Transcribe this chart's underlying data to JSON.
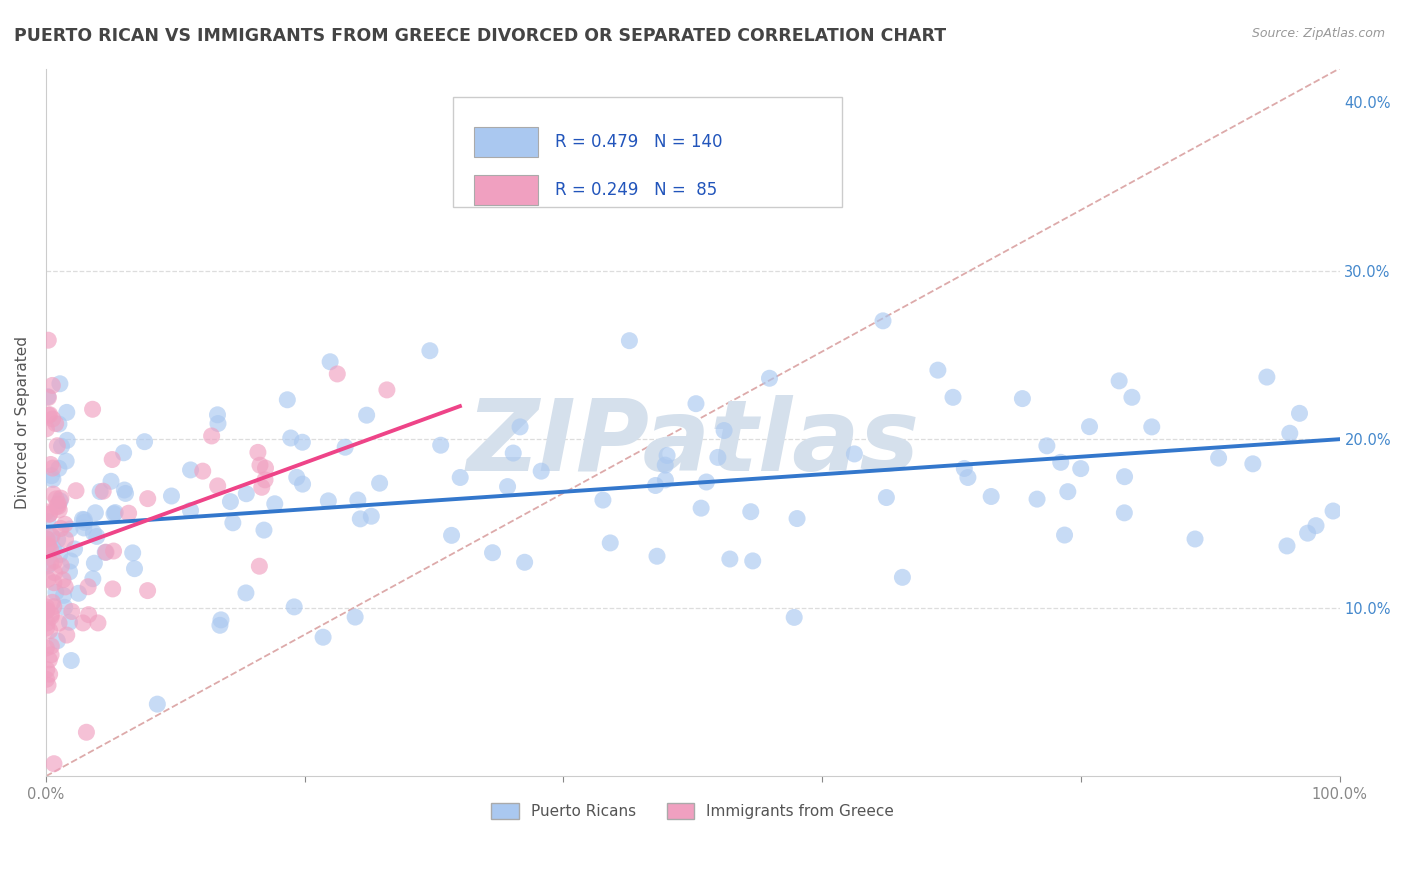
{
  "title": "PUERTO RICAN VS IMMIGRANTS FROM GREECE DIVORCED OR SEPARATED CORRELATION CHART",
  "source": "Source: ZipAtlas.com",
  "ylabel": "Divorced or Separated",
  "xlim": [
    0,
    1.0
  ],
  "ylim": [
    0,
    0.42
  ],
  "x_ticks": [
    0.0,
    0.2,
    0.4,
    0.6,
    0.8,
    1.0
  ],
  "x_tick_labels": [
    "0.0%",
    "",
    "",
    "",
    "",
    "100.0%"
  ],
  "y_ticks": [
    0.0,
    0.1,
    0.2,
    0.3,
    0.4
  ],
  "y_right_labels": [
    "",
    "10.0%",
    "20.0%",
    "30.0%",
    "40.0%"
  ],
  "blue_R": 0.479,
  "blue_N": 140,
  "pink_R": 0.249,
  "pink_N": 85,
  "blue_color": "#aac8f0",
  "pink_color": "#f0a0c0",
  "blue_line_color": "#3377cc",
  "pink_line_color": "#ee4488",
  "diag_color": "#ddaaaa",
  "grid_color": "#dddddd",
  "legend_blue_label": "Puerto Ricans",
  "legend_pink_label": "Immigrants from Greece",
  "title_color": "#444444",
  "watermark_text": "ZIPatlas",
  "watermark_color": "#d5e0ec",
  "title_fontsize": 12.5,
  "axis_label_fontsize": 11,
  "tick_fontsize": 10.5,
  "right_tick_color": "#4488cc",
  "blue_intercept": 0.148,
  "blue_slope": 0.052,
  "pink_intercept": 0.13,
  "pink_slope": 0.28
}
